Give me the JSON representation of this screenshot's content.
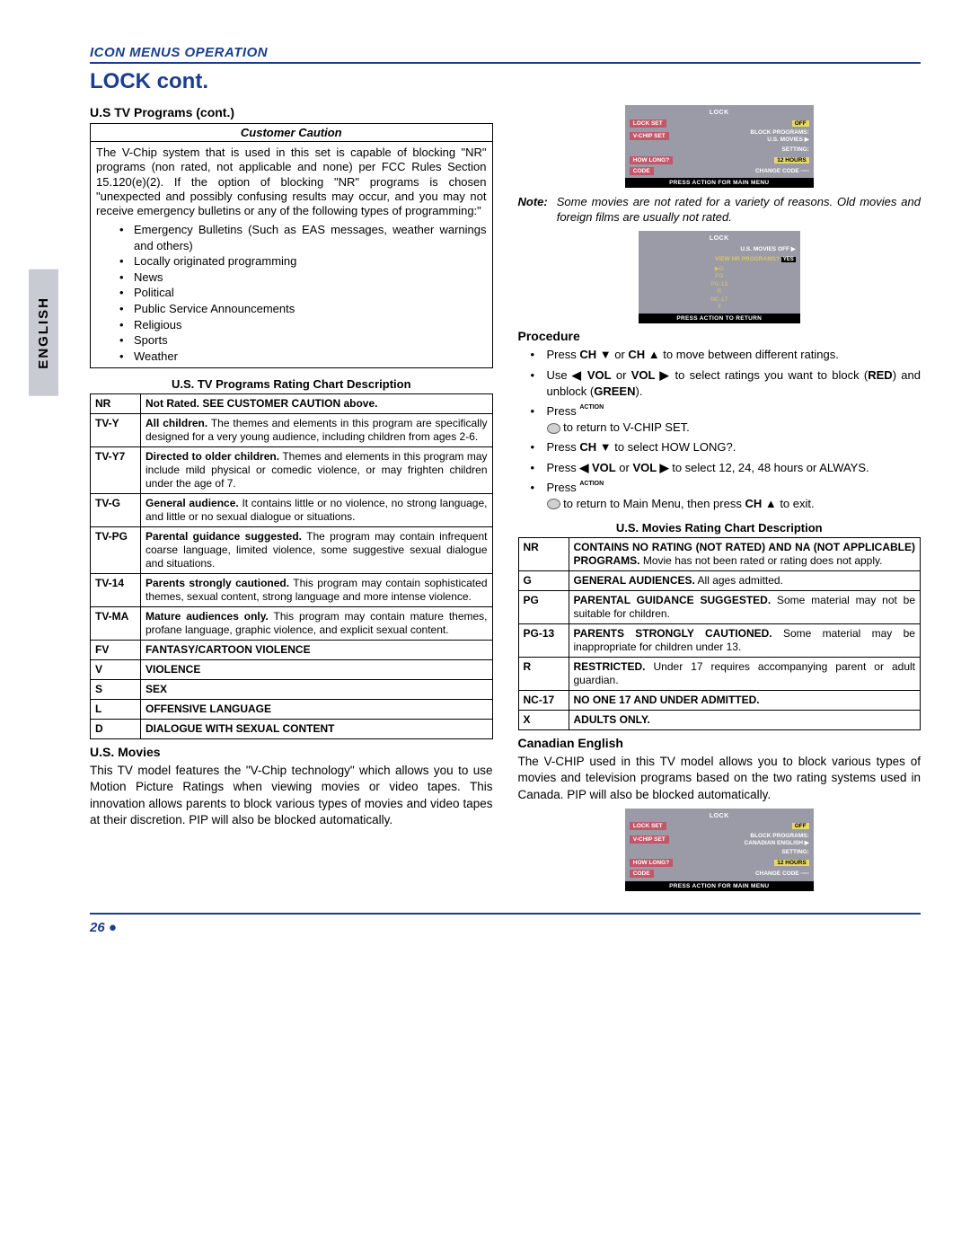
{
  "side_tab": "ENGLISH",
  "section_label": "ICON MENUS OPERATION",
  "title": "LOCK cont.",
  "left": {
    "h_programs": "U.S TV Programs (cont.)",
    "caution_head": "Customer Caution",
    "caution_body": "The V-Chip system that is used in this set is capable of blocking \"NR\" programs (non rated, not applicable and none) per FCC Rules Section 15.120(e)(2). If the option of blocking \"NR\" programs is chosen \"unexpected and possibly confusing results may occur, and you may not receive emergency bulletins or any of the following types of programming:\"",
    "caution_list": [
      "Emergency Bulletins (Such as EAS messages, weather warnings and others)",
      "Locally originated programming",
      "News",
      "Political",
      "Public Service Announcements",
      "Religious",
      "Sports",
      "Weather"
    ],
    "chart_head": "U.S. TV Programs Rating Chart Description",
    "ratings": [
      {
        "code": "NR",
        "desc_bold": "Not Rated. SEE CUSTOMER CAUTION above.",
        "desc": ""
      },
      {
        "code": "TV-Y",
        "desc_bold": "All children.",
        "desc": " The themes and elements in this program are specifically designed for a very young audience, including children from ages 2-6."
      },
      {
        "code": "TV-Y7",
        "desc_bold": "Directed to older children.",
        "desc": " Themes and elements in this program may include mild physical or comedic violence, or may frighten children under the age of 7."
      },
      {
        "code": "TV-G",
        "desc_bold": "General audience.",
        "desc": " It contains little or no violence, no strong language, and little or no sexual dialogue or situations."
      },
      {
        "code": "TV-PG",
        "desc_bold": "Parental guidance suggested.",
        "desc": " The program may contain infrequent coarse language, limited violence, some suggestive sexual dialogue and situations."
      },
      {
        "code": "TV-14",
        "desc_bold": "Parents strongly cautioned.",
        "desc": " This program may contain sophisticated themes, sexual content, strong language and more intense violence."
      },
      {
        "code": "TV-MA",
        "desc_bold": "Mature audiences only.",
        "desc": "  This program may contain mature themes, profane language, graphic violence, and explicit sexual content."
      },
      {
        "code": "FV",
        "desc_bold": "FANTASY/CARTOON VIOLENCE",
        "desc": ""
      },
      {
        "code": "V",
        "desc_bold": "VIOLENCE",
        "desc": ""
      },
      {
        "code": "S",
        "desc_bold": "SEX",
        "desc": ""
      },
      {
        "code": "L",
        "desc_bold": "OFFENSIVE LANGUAGE",
        "desc": ""
      },
      {
        "code": "D",
        "desc_bold": "DIALOGUE WITH SEXUAL CONTENT",
        "desc": ""
      }
    ],
    "h_movies": "U.S. Movies",
    "movies_para": "This TV model features the \"V-Chip technology\" which allows you to use Motion Picture Ratings when viewing movies or video tapes. This innovation allows parents to block various types of movies and video tapes at their discretion. PIP will also be blocked automatically."
  },
  "right": {
    "osd1": {
      "title": "LOCK",
      "rows": [
        {
          "l": "LOCK SET",
          "r": "OFF",
          "val": true
        },
        {
          "l": "V-CHIP SET",
          "r": "BLOCK PROGRAMS:\nU.S.  MOVIES ▶"
        },
        {
          "l": "",
          "r": "SETTING:"
        },
        {
          "l": "HOW LONG?",
          "r": "12 HOURS",
          "val": true
        },
        {
          "l": "CODE",
          "r": "CHANGE CODE  ▫▫▫▫"
        }
      ],
      "foot": "PRESS ACTION FOR MAIN MENU"
    },
    "note_lbl": "Note:",
    "note_txt": "Some movies are not rated for a variety of reasons. Old movies and foreign films are usually not rated.",
    "osd2": {
      "title": "LOCK",
      "row1": "U.S. MOVIES      OFF ▶",
      "row2_l": "VIEW NR PROGRAMS?",
      "row2_r": "YES",
      "list": [
        "▶G",
        "PG",
        "PG-13",
        "R",
        "NC-17",
        "X"
      ],
      "foot": "PRESS ACTION TO RETURN"
    },
    "h_proc": "Procedure",
    "proc": [
      "Press <b>CH ▼</b> or <b>CH ▲</b>    to move between different ratings.",
      "Use <b>◀ VOL</b> or <b>VOL ▶</b> to select ratings you want to block (<b>RED</b>) and unblock (<b>GREEN</b>).",
      "Press <span class='action-lbl'>ACTION</span><br><span class='action-btn'></span>   to return to  V-CHIP SET.",
      "Press <b>CH ▼</b> to select HOW LONG?.",
      "Press <b>◀ VOL</b> or <b>VOL ▶</b> to select 12, 24, 48 hours or ALWAYS.",
      "Press <span class='action-lbl'>ACTION</span><br><span class='action-btn'></span>   to return to Main Menu, then press <b>CH ▲</b> to exit."
    ],
    "movies_chart_head": "U.S. Movies Rating Chart Description",
    "movies_ratings": [
      {
        "code": "NR",
        "desc_bold": "CONTAINS NO RATING (NOT RATED) AND NA (NOT APPLICABLE) PROGRAMS.",
        "desc": " Movie has not been rated or rating does not apply."
      },
      {
        "code": "G",
        "desc_bold": "GENERAL AUDIENCES.",
        "desc": " All ages admitted."
      },
      {
        "code": "PG",
        "desc_bold": "PARENTAL GUIDANCE SUGGESTED.",
        "desc": " Some material may not be suitable for children."
      },
      {
        "code": "PG-13",
        "desc_bold": "PARENTS STRONGLY CAUTIONED.",
        "desc": " Some material may be inappropriate for children under 13."
      },
      {
        "code": "R",
        "desc_bold": "RESTRICTED.",
        "desc": " Under 17 requires accompanying parent or adult guardian."
      },
      {
        "code": "NC-17",
        "desc_bold": "NO ONE 17 AND UNDER ADMITTED.",
        "desc": ""
      },
      {
        "code": "X",
        "desc_bold": "ADULTS ONLY.",
        "desc": ""
      }
    ],
    "h_canadian": "Canadian English",
    "canadian_para": "The V-CHIP used in this TV model allows you to block various types of movies and television programs based on the two rating systems used in Canada. PIP will also be blocked automatically.",
    "osd3": {
      "title": "LOCK",
      "rows": [
        {
          "l": "LOCK SET",
          "r": "OFF",
          "val": true
        },
        {
          "l": "V-CHIP SET",
          "r": "BLOCK PROGRAMS:\nCANADIAN ENGLISH ▶"
        },
        {
          "l": "",
          "r": "SETTING:"
        },
        {
          "l": "HOW LONG?",
          "r": "12 HOURS",
          "val": true
        },
        {
          "l": "CODE",
          "r": "CHANGE CODE  ▫▫▫▫"
        }
      ],
      "foot": "PRESS ACTION FOR MAIN MENU"
    }
  },
  "page_num": "26"
}
